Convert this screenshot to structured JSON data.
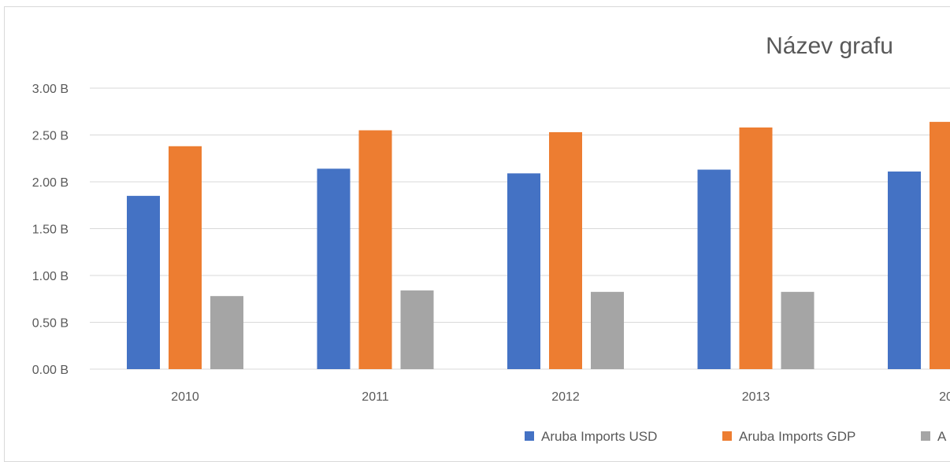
{
  "chart_data": {
    "type": "bar",
    "title": "Název grafu",
    "xlabel": "",
    "ylabel": "",
    "categories": [
      "2010",
      "2011",
      "2012",
      "2013",
      "20"
    ],
    "series": [
      {
        "name": "Aruba Imports USD",
        "color": "#4472c4",
        "values": [
          1.85,
          2.14,
          2.09,
          2.13,
          2.11
        ]
      },
      {
        "name": "Aruba Imports GDP",
        "color": "#ed7d31",
        "values": [
          2.38,
          2.55,
          2.53,
          2.58,
          2.64
        ]
      },
      {
        "name": "A",
        "color": "#a5a5a5",
        "values": [
          0.78,
          0.84,
          0.825,
          0.825,
          null
        ]
      }
    ],
    "ylim": [
      0,
      3
    ],
    "y_ticks": [
      "0.00 B",
      "0.50 B",
      "1.00 B",
      "1.50 B",
      "2.00 B",
      "2.50 B",
      "3.00 B"
    ],
    "y_tick_values": [
      0,
      0.5,
      1,
      1.5,
      2,
      2.5,
      3
    ],
    "grid": true,
    "legend_position": "bottom"
  }
}
